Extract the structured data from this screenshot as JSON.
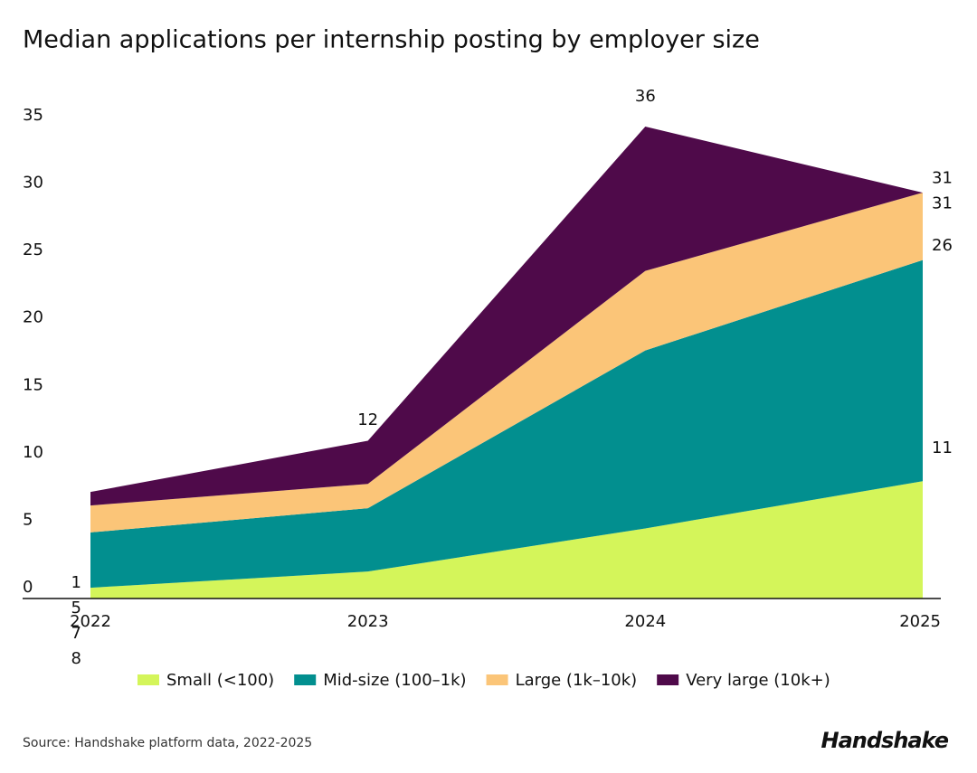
{
  "chart_data": {
    "type": "stacked_area",
    "title": "Median applications per internship posting by employer size",
    "categories": [
      "2022",
      "2023",
      "2024",
      "2025"
    ],
    "series": [
      {
        "name": "Small (<100)",
        "color": "#d4f55a",
        "values": [
          0.8,
          2,
          5.2,
          8.7
        ]
      },
      {
        "name": "Mid-size (100–1k)",
        "color": "#028f8f",
        "values": [
          4.1,
          4.7,
          13.2,
          16.4
        ]
      },
      {
        "name": "Large (1k–10k)",
        "color": "#fbc578",
        "values": [
          2,
          1.8,
          5.9,
          5
        ]
      },
      {
        "name": "Very large (10k+)",
        "color": "#4f0a4a",
        "values": [
          1,
          3.2,
          10.7,
          0
        ]
      }
    ],
    "point_labels": [
      [
        1,
        5,
        7,
        8
      ],
      [
        12
      ],
      [
        36
      ],
      [
        31,
        31,
        26,
        11
      ]
    ],
    "ylim": [
      0,
      35
    ],
    "yticks": [
      0,
      5,
      10,
      15,
      20,
      25,
      30,
      35
    ],
    "grid": false,
    "legend": "bottom",
    "source": "Source: Handshake platform data, 2022-2025",
    "brand": "Handshake"
  }
}
